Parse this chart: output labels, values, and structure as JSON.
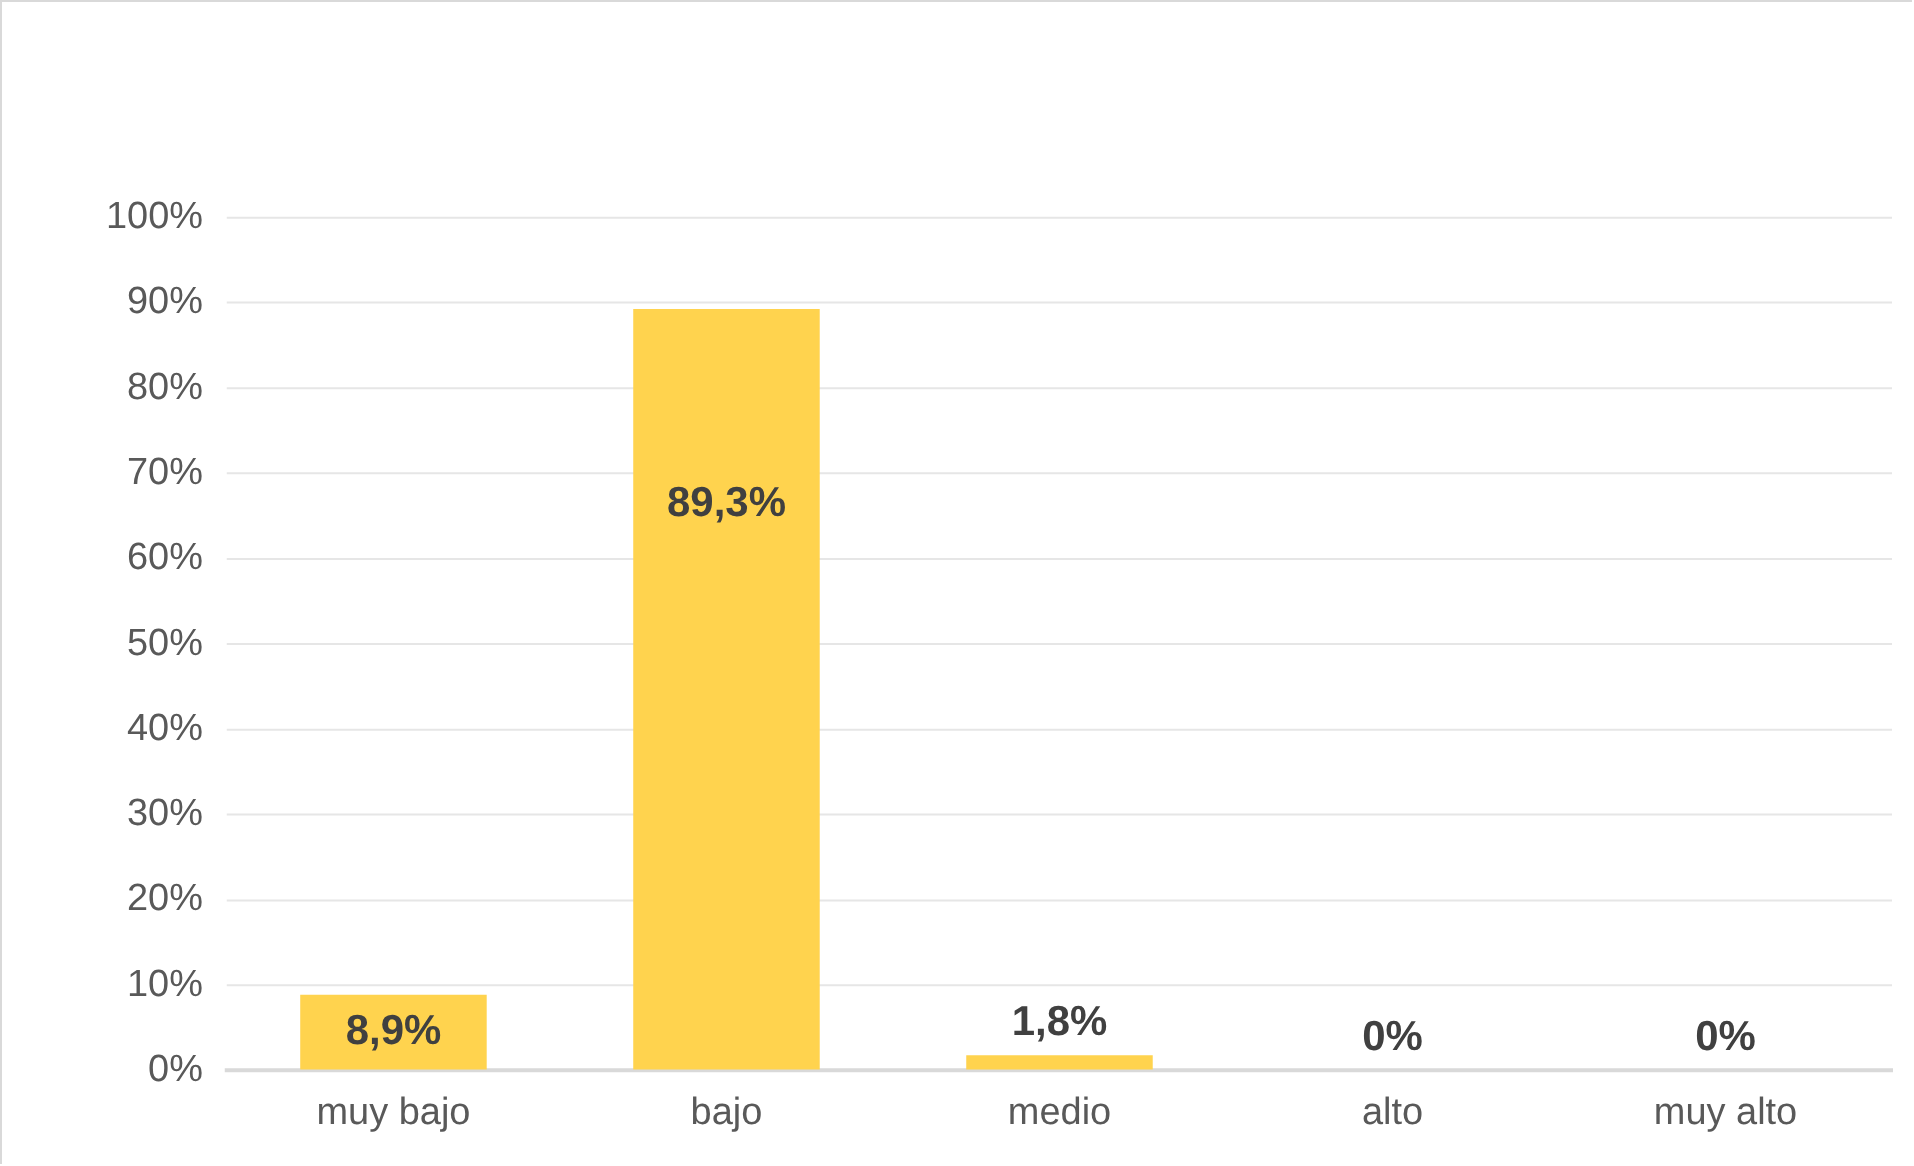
{
  "chart_data": {
    "type": "bar",
    "categories": [
      "muy bajo",
      "bajo",
      "medio",
      "alto",
      "muy alto"
    ],
    "values": [
      8.9,
      89.3,
      1.8,
      0,
      0
    ],
    "value_labels": [
      "8,9%",
      "89,3%",
      "1,8%",
      "0%",
      "0%"
    ],
    "color": "#ffd34e",
    "ylim": [
      0,
      100
    ],
    "yticks": [
      {
        "value": 0,
        "label": "0%"
      },
      {
        "value": 10,
        "label": "10%"
      },
      {
        "value": 20,
        "label": "20%"
      },
      {
        "value": 30,
        "label": "30%"
      },
      {
        "value": 40,
        "label": "40%"
      },
      {
        "value": 50,
        "label": "50%"
      },
      {
        "value": 60,
        "label": "60%"
      },
      {
        "value": 70,
        "label": "70%"
      },
      {
        "value": 80,
        "label": "80%"
      },
      {
        "value": 90,
        "label": "90%"
      },
      {
        "value": 100,
        "label": "100%"
      }
    ],
    "grid": "y",
    "legend": false
  }
}
